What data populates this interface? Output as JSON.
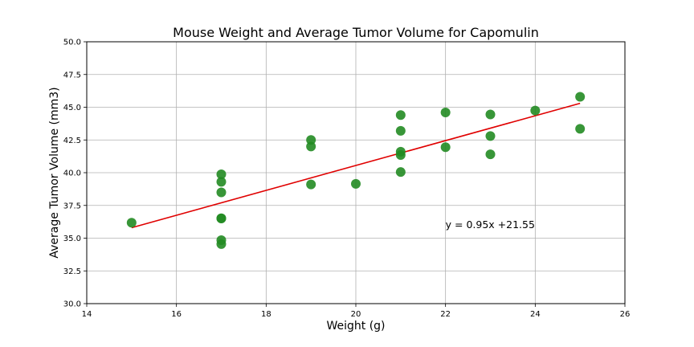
{
  "chart_data": {
    "type": "scatter",
    "title": "Mouse Weight and Average Tumor Volume for Capomulin",
    "xlabel": "Weight (g)",
    "ylabel": "Average Tumor Volume (mm3)",
    "xlim": [
      14,
      26
    ],
    "ylim": [
      30.0,
      50.0
    ],
    "xticks": [
      14,
      16,
      18,
      20,
      22,
      24,
      26
    ],
    "yticks": [
      30.0,
      32.5,
      35.0,
      37.5,
      40.0,
      42.5,
      45.0,
      47.5,
      50.0
    ],
    "grid": true,
    "series": [
      {
        "marker_color": "#228B22",
        "points": [
          {
            "x": 15,
            "y": 36.18
          },
          {
            "x": 17,
            "y": 34.85
          },
          {
            "x": 17,
            "y": 34.55
          },
          {
            "x": 17,
            "y": 36.5
          },
          {
            "x": 17,
            "y": 36.52
          },
          {
            "x": 17,
            "y": 38.5
          },
          {
            "x": 17,
            "y": 39.3
          },
          {
            "x": 17,
            "y": 39.88
          },
          {
            "x": 19,
            "y": 42.5
          },
          {
            "x": 19,
            "y": 42.0
          },
          {
            "x": 19,
            "y": 39.1
          },
          {
            "x": 20,
            "y": 39.15
          },
          {
            "x": 21,
            "y": 44.4
          },
          {
            "x": 21,
            "y": 43.2
          },
          {
            "x": 21,
            "y": 41.6
          },
          {
            "x": 21,
            "y": 41.35
          },
          {
            "x": 21,
            "y": 40.05
          },
          {
            "x": 22,
            "y": 44.6
          },
          {
            "x": 22,
            "y": 41.95
          },
          {
            "x": 23,
            "y": 44.45
          },
          {
            "x": 23,
            "y": 42.8
          },
          {
            "x": 23,
            "y": 41.4
          },
          {
            "x": 24,
            "y": 44.75
          },
          {
            "x": 25,
            "y": 45.8
          },
          {
            "x": 25,
            "y": 43.35
          }
        ]
      }
    ],
    "regression": {
      "slope": 0.95,
      "intercept": 21.55,
      "x_range": [
        15,
        25
      ],
      "line_color": "#e00000",
      "label": "y = 0.95x +21.55",
      "label_x": 22,
      "label_y": 36.0
    }
  }
}
